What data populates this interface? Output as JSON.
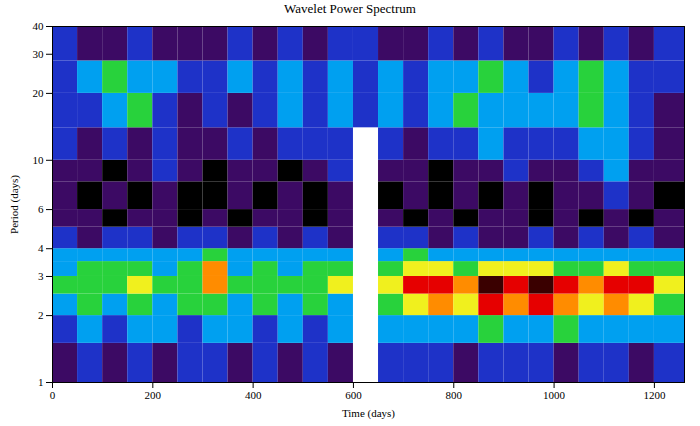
{
  "chart_data": {
    "type": "heatmap",
    "title": "Wavelet Power Spectrum",
    "x_label": "Time (days)",
    "y_label": "Period (days)",
    "log": "y",
    "xlim": [
      0,
      1260
    ],
    "xticks": [
      0,
      200,
      400,
      600,
      800,
      1000,
      1200
    ],
    "ylim": [
      1,
      40
    ],
    "yticks": [
      1,
      2,
      3,
      4,
      6,
      10,
      20,
      30,
      40
    ],
    "zlim": [
      0,
      8
    ],
    "colors": [
      "#000000",
      "#3c0a64",
      "#1e32c8",
      "#00a0f0",
      "#28d23c",
      "#f0f01e",
      "#ff8c00",
      "#e60000",
      "#3a0000"
    ],
    "time_edges": [
      0,
      50,
      100,
      150,
      200,
      250,
      300,
      350,
      400,
      450,
      500,
      550,
      600,
      650,
      700,
      750,
      800,
      850,
      900,
      950,
      1000,
      1050,
      1100,
      1150,
      1200,
      1260
    ],
    "period_edges": [
      1,
      1.5,
      2,
      2.5,
      3,
      3.5,
      4,
      5,
      6,
      8,
      10,
      14,
      20,
      28,
      40
    ],
    "power": [
      [
        1,
        2,
        1,
        2,
        1,
        2,
        2,
        1,
        2,
        1,
        2,
        1,
        null,
        2,
        2,
        2,
        1,
        2,
        2,
        2,
        1,
        2,
        2,
        1,
        2
      ],
      [
        2,
        3,
        2,
        3,
        3,
        2,
        3,
        3,
        2,
        3,
        2,
        3,
        null,
        3,
        3,
        3,
        3,
        4,
        3,
        3,
        4,
        3,
        3,
        3,
        3
      ],
      [
        3,
        4,
        3,
        4,
        3,
        4,
        4,
        3,
        4,
        3,
        4,
        3,
        null,
        4,
        5,
        6,
        5,
        7,
        6,
        7,
        6,
        5,
        6,
        5,
        4
      ],
      [
        4,
        4,
        4,
        5,
        4,
        4,
        6,
        4,
        4,
        4,
        4,
        5,
        null,
        5,
        7,
        7,
        6,
        8,
        7,
        8,
        7,
        6,
        7,
        7,
        5
      ],
      [
        3,
        4,
        4,
        4,
        3,
        4,
        6,
        3,
        4,
        3,
        4,
        4,
        null,
        4,
        5,
        5,
        4,
        5,
        5,
        5,
        4,
        4,
        5,
        4,
        4
      ],
      [
        3,
        3,
        3,
        3,
        3,
        3,
        4,
        3,
        3,
        3,
        3,
        3,
        null,
        3,
        4,
        3,
        3,
        3,
        3,
        3,
        3,
        3,
        3,
        3,
        3
      ],
      [
        2,
        1,
        2,
        2,
        1,
        2,
        2,
        1,
        2,
        1,
        2,
        1,
        null,
        2,
        2,
        1,
        2,
        1,
        1,
        2,
        1,
        2,
        1,
        2,
        1
      ],
      [
        1,
        1,
        0,
        1,
        1,
        0,
        1,
        0,
        1,
        1,
        0,
        1,
        null,
        1,
        0,
        1,
        0,
        1,
        1,
        0,
        1,
        0,
        1,
        0,
        1
      ],
      [
        1,
        0,
        1,
        0,
        1,
        0,
        0,
        1,
        0,
        1,
        0,
        1,
        null,
        0,
        1,
        0,
        1,
        0,
        1,
        0,
        1,
        1,
        2,
        1,
        0
      ],
      [
        1,
        1,
        0,
        1,
        2,
        1,
        0,
        1,
        1,
        0,
        1,
        2,
        null,
        1,
        1,
        0,
        1,
        1,
        2,
        1,
        1,
        2,
        3,
        1,
        1
      ],
      [
        2,
        1,
        2,
        1,
        2,
        1,
        1,
        2,
        1,
        2,
        2,
        2,
        null,
        2,
        1,
        2,
        2,
        3,
        2,
        2,
        2,
        3,
        3,
        2,
        1
      ],
      [
        2,
        2,
        3,
        4,
        2,
        1,
        2,
        1,
        2,
        3,
        2,
        3,
        2,
        3,
        2,
        3,
        4,
        3,
        3,
        3,
        3,
        4,
        3,
        2,
        1
      ],
      [
        2,
        3,
        4,
        3,
        3,
        2,
        2,
        3,
        2,
        3,
        2,
        3,
        2,
        3,
        2,
        3,
        3,
        4,
        3,
        2,
        3,
        4,
        3,
        2,
        2
      ],
      [
        2,
        1,
        1,
        2,
        1,
        1,
        1,
        2,
        1,
        2,
        1,
        2,
        2,
        1,
        1,
        2,
        1,
        2,
        1,
        1,
        2,
        1,
        2,
        1,
        2
      ]
    ]
  }
}
